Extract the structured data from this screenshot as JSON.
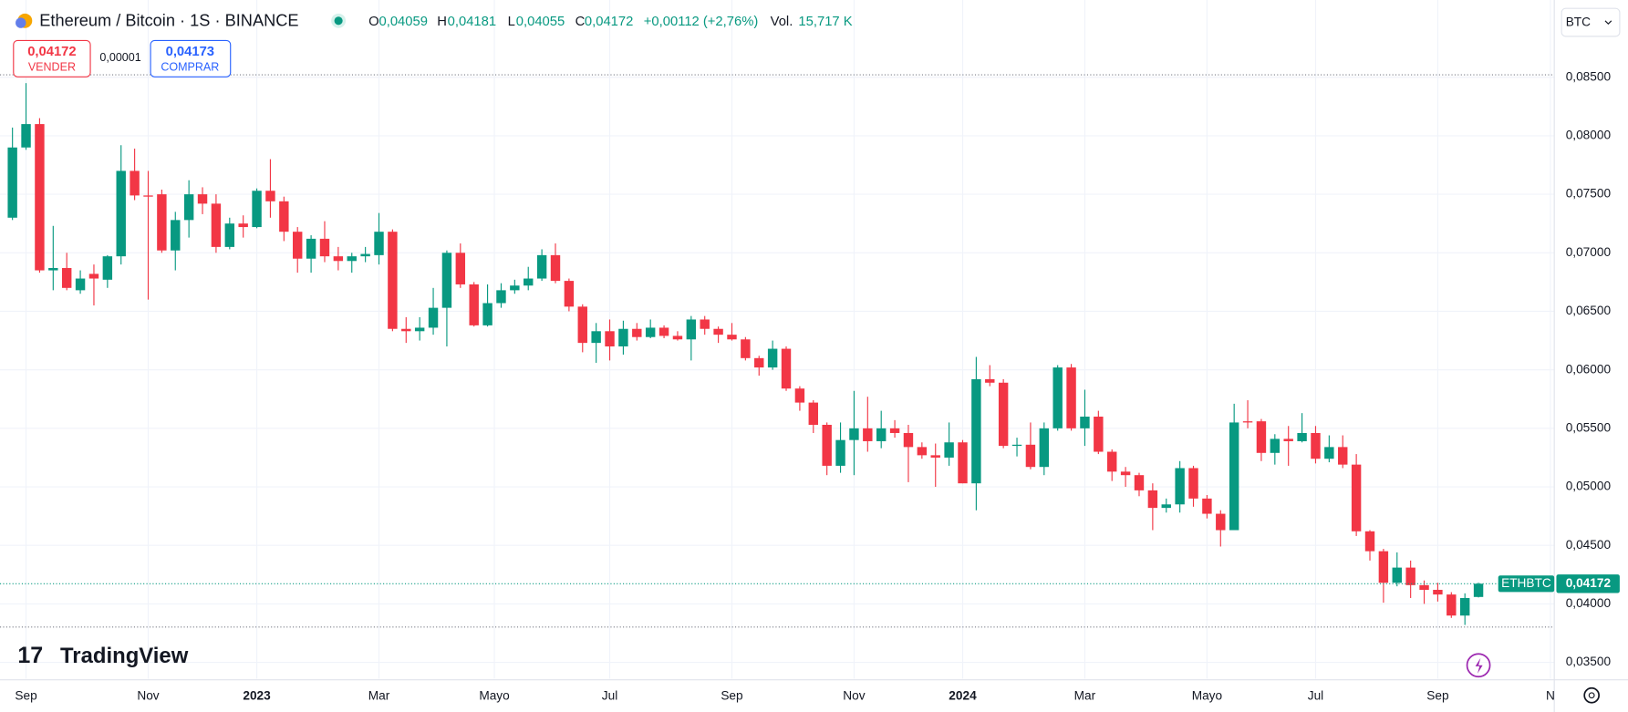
{
  "chart_data": {
    "type": "candlestick",
    "header": {
      "title": "Ethereum / Bitcoin · 1S · BINANCE",
      "o_label": "O",
      "o_value": "0,04059",
      "h_label": "H",
      "h_value": "0,04181",
      "l_label": "L",
      "l_value": "0,04055",
      "c_label": "C",
      "c_value": "0,04172",
      "change": "+0,00112 (+2,76%)",
      "vol_label": "Vol.",
      "vol_value": "15,717 K"
    },
    "sell": {
      "price": "0,04172",
      "label": "VENDER"
    },
    "spread": "0,00001",
    "buy": {
      "price": "0,04173",
      "label": "COMPRAR"
    },
    "currency": "BTC",
    "symbol": "ETHBTC",
    "last_price_label": "0,04172",
    "logo": "TradingView",
    "up_color": "#089981",
    "down_color": "#f23645",
    "open": [
      0.073,
      0.079,
      0.081,
      0.0685,
      0.0687,
      0.0668,
      0.0682,
      0.0677,
      0.0697,
      0.077,
      0.0749,
      0.075,
      0.0702,
      0.0728,
      0.075,
      0.0742,
      0.0705,
      0.0725,
      0.0722,
      0.0753,
      0.0744,
      0.0718,
      0.0695,
      0.0712,
      0.0697,
      0.0693,
      0.0697,
      0.0698,
      0.0718,
      0.0635,
      0.0633,
      0.0636,
      0.0653,
      0.07,
      0.0673,
      0.0638,
      0.0657,
      0.0668,
      0.0672,
      0.0678,
      0.0698,
      0.0676,
      0.0654,
      0.0623,
      0.0633,
      0.062,
      0.0635,
      0.0628,
      0.0636,
      0.0629,
      0.0626,
      0.0643,
      0.0635,
      0.063,
      0.0626,
      0.061,
      0.0602,
      0.0618,
      0.0584,
      0.0572,
      0.0553,
      0.0518,
      0.054,
      0.055,
      0.0539,
      0.055,
      0.0546,
      0.0534,
      0.0527,
      0.0525,
      0.0538,
      0.0503,
      0.0592,
      0.0589,
      0.0535,
      0.0536,
      0.0517,
      0.055,
      0.0602,
      0.055,
      0.056,
      0.053,
      0.0513,
      0.051,
      0.0497,
      0.0482,
      0.0485,
      0.0516,
      0.049,
      0.0477,
      0.0463,
      0.0556,
      0.0556,
      0.0529,
      0.0541,
      0.0539,
      0.0546,
      0.0524,
      0.0534,
      0.0519,
      0.0462,
      0.0445,
      0.0418,
      0.0431,
      0.0416,
      0.0412,
      0.0408,
      0.039,
      0.04059
    ],
    "high": [
      0.0807,
      0.0845,
      0.0815,
      0.0723,
      0.07,
      0.0685,
      0.069,
      0.0698,
      0.0792,
      0.0789,
      0.077,
      0.0754,
      0.0735,
      0.0762,
      0.0756,
      0.075,
      0.073,
      0.0732,
      0.0755,
      0.078,
      0.0748,
      0.0722,
      0.0715,
      0.0727,
      0.0705,
      0.07,
      0.0705,
      0.0734,
      0.072,
      0.0645,
      0.0645,
      0.067,
      0.0702,
      0.0708,
      0.0675,
      0.0673,
      0.0674,
      0.0677,
      0.0688,
      0.0703,
      0.0708,
      0.0678,
      0.0656,
      0.064,
      0.0643,
      0.0642,
      0.064,
      0.0643,
      0.0638,
      0.0633,
      0.0646,
      0.0646,
      0.0637,
      0.064,
      0.0628,
      0.0612,
      0.0625,
      0.062,
      0.0586,
      0.0574,
      0.0555,
      0.0555,
      0.0582,
      0.0577,
      0.0565,
      0.0557,
      0.0553,
      0.0538,
      0.0537,
      0.0555,
      0.054,
      0.0611,
      0.0604,
      0.0592,
      0.0542,
      0.0555,
      0.0555,
      0.0604,
      0.0605,
      0.0583,
      0.0565,
      0.0532,
      0.0517,
      0.0512,
      0.0503,
      0.049,
      0.0522,
      0.0518,
      0.0493,
      0.048,
      0.0571,
      0.0574,
      0.0558,
      0.0545,
      0.0552,
      0.0563,
      0.0552,
      0.0544,
      0.0544,
      0.0528,
      0.0463,
      0.0447,
      0.0444,
      0.0437,
      0.042,
      0.0418,
      0.041,
      0.0409,
      0.04181
    ],
    "low": [
      0.0728,
      0.0788,
      0.0683,
      0.0668,
      0.0668,
      0.0665,
      0.0655,
      0.067,
      0.069,
      0.0745,
      0.066,
      0.07,
      0.0685,
      0.0713,
      0.0733,
      0.07,
      0.0703,
      0.0713,
      0.0721,
      0.073,
      0.071,
      0.0683,
      0.0683,
      0.0692,
      0.0685,
      0.0683,
      0.0692,
      0.069,
      0.0633,
      0.0623,
      0.0625,
      0.063,
      0.062,
      0.067,
      0.0637,
      0.0637,
      0.0653,
      0.0665,
      0.0668,
      0.0676,
      0.0674,
      0.065,
      0.0615,
      0.0606,
      0.0608,
      0.0613,
      0.0625,
      0.0627,
      0.0627,
      0.0625,
      0.0608,
      0.063,
      0.0623,
      0.0625,
      0.0608,
      0.0595,
      0.06,
      0.0582,
      0.0565,
      0.0546,
      0.051,
      0.0512,
      0.051,
      0.053,
      0.0533,
      0.0542,
      0.0504,
      0.0524,
      0.05,
      0.0518,
      0.0503,
      0.048,
      0.0586,
      0.0533,
      0.0526,
      0.0515,
      0.051,
      0.0548,
      0.0548,
      0.0535,
      0.0528,
      0.0505,
      0.05,
      0.0492,
      0.0463,
      0.0478,
      0.0478,
      0.0483,
      0.0473,
      0.0449,
      0.0463,
      0.055,
      0.0522,
      0.0519,
      0.0518,
      0.0538,
      0.052,
      0.0521,
      0.0516,
      0.0458,
      0.0437,
      0.0401,
      0.0415,
      0.0405,
      0.04,
      0.0402,
      0.0388,
      0.0382,
      0.04055
    ],
    "close": [
      0.079,
      0.081,
      0.0685,
      0.0687,
      0.067,
      0.0678,
      0.0678,
      0.0697,
      0.077,
      0.0749,
      0.0748,
      0.0702,
      0.0728,
      0.075,
      0.0742,
      0.0705,
      0.0725,
      0.0722,
      0.0753,
      0.0744,
      0.0718,
      0.0695,
      0.0712,
      0.0697,
      0.0693,
      0.0697,
      0.0699,
      0.0718,
      0.0635,
      0.0633,
      0.0636,
      0.0653,
      0.07,
      0.0673,
      0.0638,
      0.0657,
      0.0668,
      0.0672,
      0.0678,
      0.0698,
      0.0676,
      0.0654,
      0.0623,
      0.0633,
      0.062,
      0.0635,
      0.0628,
      0.0636,
      0.0629,
      0.0626,
      0.0643,
      0.0635,
      0.063,
      0.0626,
      0.061,
      0.0602,
      0.0618,
      0.0584,
      0.0572,
      0.0553,
      0.0518,
      0.054,
      0.055,
      0.0539,
      0.055,
      0.0546,
      0.0534,
      0.0527,
      0.0525,
      0.0538,
      0.0503,
      0.0592,
      0.0589,
      0.0535,
      0.0536,
      0.0517,
      0.055,
      0.0602,
      0.055,
      0.056,
      0.053,
      0.0513,
      0.051,
      0.0497,
      0.0482,
      0.0485,
      0.0516,
      0.049,
      0.0477,
      0.0463,
      0.0555,
      0.0555,
      0.0529,
      0.0541,
      0.0539,
      0.0546,
      0.0524,
      0.0534,
      0.0519,
      0.0462,
      0.0445,
      0.0418,
      0.0431,
      0.0416,
      0.0412,
      0.0408,
      0.039,
      0.0405,
      0.04172
    ],
    "xticks": [
      {
        "value": 1,
        "label": "Sep"
      },
      {
        "value": 10,
        "label": "Nov"
      },
      {
        "value": 18,
        "label": "2023"
      },
      {
        "value": 27,
        "label": "Mar"
      },
      {
        "value": 35.5,
        "label": "Mayo"
      },
      {
        "value": 44,
        "label": "Jul"
      },
      {
        "value": 53,
        "label": "Sep"
      },
      {
        "value": 62,
        "label": "Nov"
      },
      {
        "value": 70,
        "label": "2024"
      },
      {
        "value": 79,
        "label": "Mar"
      },
      {
        "value": 88,
        "label": "Mayo"
      },
      {
        "value": 96,
        "label": "Jul"
      },
      {
        "value": 105,
        "label": "Sep"
      },
      {
        "value": 113.3,
        "label": "N"
      }
    ],
    "ylim": [
      0.0336,
      0.0916
    ],
    "yticks": [
      {
        "value": 0.035,
        "label": "0,03500"
      },
      {
        "value": 0.04,
        "label": "0,04000"
      },
      {
        "value": 0.045,
        "label": "0,04500"
      },
      {
        "value": 0.05,
        "label": "0,05000"
      },
      {
        "value": 0.055,
        "label": "0,05500"
      },
      {
        "value": 0.06,
        "label": "0,06000"
      },
      {
        "value": 0.065,
        "label": "0,06500"
      },
      {
        "value": 0.07,
        "label": "0,07000"
      },
      {
        "value": 0.075,
        "label": "0,07500"
      },
      {
        "value": 0.08,
        "label": "0,08000"
      },
      {
        "value": 0.085,
        "label": "0,08500"
      }
    ],
    "grid": true
  }
}
